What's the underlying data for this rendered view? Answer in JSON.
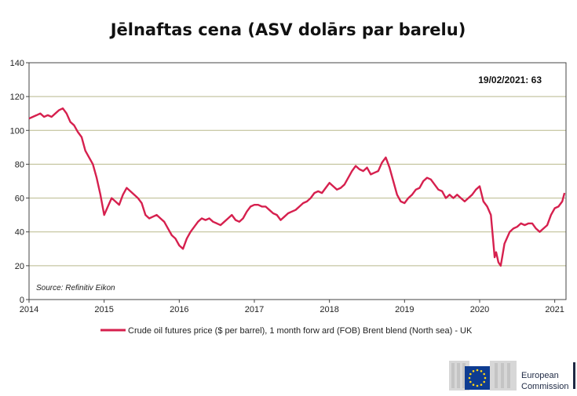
{
  "chart_data": {
    "type": "line",
    "title": "Jēlnaftas cena (ASV dolārs par barelu)",
    "xlabel": "",
    "ylabel": "",
    "xlim": [
      2014.0,
      2021.15
    ],
    "ylim": [
      0,
      140
    ],
    "yticks": [
      0,
      20,
      40,
      60,
      80,
      100,
      120,
      140
    ],
    "xticks": [
      "2014",
      "2015",
      "2016",
      "2017",
      "2018",
      "2019",
      "2020",
      "2021"
    ],
    "grid": true,
    "legend_position": "bottom",
    "annotation": "19/02/2021:  63",
    "source": "Source: Refinitiv Eikon",
    "series": [
      {
        "name": "Crude oil futures price ($ per barrel), 1 month forw ard (FOB) Brent blend (North sea) - UK",
        "color": "#d6204e",
        "x": [
          2014.0,
          2014.05,
          2014.1,
          2014.15,
          2014.2,
          2014.25,
          2014.3,
          2014.35,
          2014.4,
          2014.45,
          2014.5,
          2014.55,
          2014.6,
          2014.65,
          2014.7,
          2014.75,
          2014.8,
          2014.85,
          2014.9,
          2014.95,
          2015.0,
          2015.05,
          2015.1,
          2015.15,
          2015.2,
          2015.25,
          2015.3,
          2015.35,
          2015.4,
          2015.45,
          2015.5,
          2015.55,
          2015.6,
          2015.65,
          2015.7,
          2015.75,
          2015.8,
          2015.85,
          2015.9,
          2015.95,
          2016.0,
          2016.05,
          2016.1,
          2016.15,
          2016.2,
          2016.25,
          2016.3,
          2016.35,
          2016.4,
          2016.45,
          2016.5,
          2016.55,
          2016.6,
          2016.65,
          2016.7,
          2016.75,
          2016.8,
          2016.85,
          2016.9,
          2016.95,
          2017.0,
          2017.05,
          2017.1,
          2017.15,
          2017.2,
          2017.25,
          2017.3,
          2017.35,
          2017.4,
          2017.45,
          2017.5,
          2017.55,
          2017.6,
          2017.65,
          2017.7,
          2017.75,
          2017.8,
          2017.85,
          2017.9,
          2017.95,
          2018.0,
          2018.05,
          2018.1,
          2018.15,
          2018.2,
          2018.25,
          2018.3,
          2018.35,
          2018.4,
          2018.45,
          2018.5,
          2018.55,
          2018.6,
          2018.65,
          2018.7,
          2018.75,
          2018.8,
          2018.85,
          2018.9,
          2018.95,
          2019.0,
          2019.05,
          2019.1,
          2019.15,
          2019.2,
          2019.25,
          2019.3,
          2019.35,
          2019.4,
          2019.45,
          2019.5,
          2019.55,
          2019.6,
          2019.65,
          2019.7,
          2019.75,
          2019.8,
          2019.85,
          2019.9,
          2019.95,
          2020.0,
          2020.05,
          2020.1,
          2020.15,
          2020.18,
          2020.2,
          2020.22,
          2020.25,
          2020.28,
          2020.3,
          2020.33,
          2020.35,
          2020.4,
          2020.45,
          2020.5,
          2020.55,
          2020.6,
          2020.65,
          2020.7,
          2020.75,
          2020.8,
          2020.85,
          2020.9,
          2020.95,
          2021.0,
          2021.05,
          2021.1,
          2021.13
        ],
        "values": [
          107,
          108,
          109,
          110,
          108,
          109,
          108,
          110,
          112,
          113,
          110,
          105,
          103,
          99,
          96,
          88,
          84,
          80,
          72,
          62,
          50,
          55,
          60,
          58,
          56,
          62,
          66,
          64,
          62,
          60,
          57,
          50,
          48,
          49,
          50,
          48,
          46,
          42,
          38,
          36,
          32,
          30,
          36,
          40,
          43,
          46,
          48,
          47,
          48,
          46,
          45,
          44,
          46,
          48,
          50,
          47,
          46,
          48,
          52,
          55,
          56,
          56,
          55,
          55,
          53,
          51,
          50,
          47,
          49,
          51,
          52,
          53,
          55,
          57,
          58,
          60,
          63,
          64,
          63,
          66,
          69,
          67,
          65,
          66,
          68,
          72,
          76,
          79,
          77,
          76,
          78,
          74,
          75,
          76,
          81,
          84,
          78,
          70,
          62,
          58,
          57,
          60,
          62,
          65,
          66,
          70,
          72,
          71,
          68,
          65,
          64,
          60,
          62,
          60,
          62,
          60,
          58,
          60,
          62,
          65,
          67,
          58,
          55,
          50,
          35,
          25,
          28,
          22,
          20,
          25,
          33,
          35,
          40,
          42,
          43,
          45,
          44,
          45,
          45,
          42,
          40,
          42,
          44,
          50,
          54,
          55,
          58,
          63
        ]
      }
    ]
  },
  "logo": {
    "line1": "European",
    "line2": "Commission"
  }
}
